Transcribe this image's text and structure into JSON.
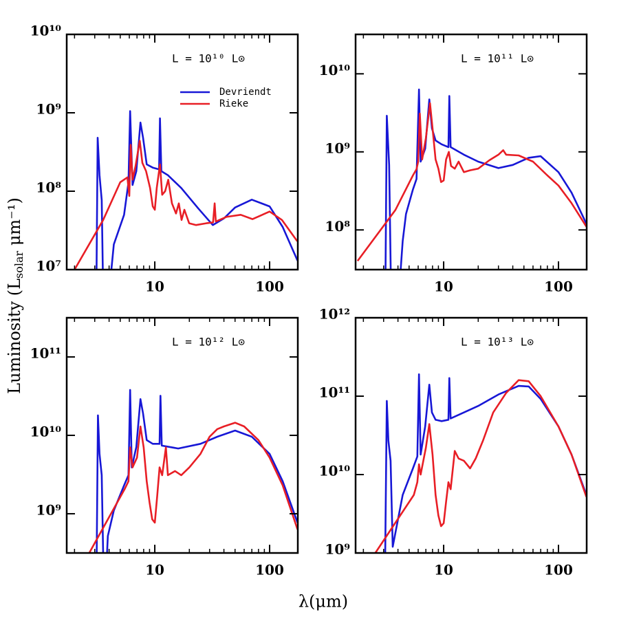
{
  "xlabel": "λ(μm)",
  "ylabel": {
    "text": "Luminosity (L",
    "sub": "solar",
    "end": " μm⁻¹)"
  },
  "chart_data": [
    {
      "type": "line",
      "annotation": "L = 10¹⁰ L⊙",
      "xscale": "log",
      "yscale": "log",
      "legend": true,
      "xlim": [
        1.71,
        176
      ],
      "xticks": [
        10,
        100
      ],
      "xminorticks": [
        2,
        3,
        4,
        5,
        6,
        7,
        8,
        9,
        20,
        30,
        40,
        50,
        60,
        70,
        80,
        90
      ],
      "ylim": [
        10000000.0,
        10000000000.0
      ],
      "yticks": [
        {
          "value": 10000000.0,
          "label": "10⁷"
        },
        {
          "value": 100000000.0,
          "label": "10⁸"
        },
        {
          "value": 1000000000.0,
          "label": "10⁹"
        },
        {
          "value": 10000000000.0,
          "label": "10¹⁰"
        }
      ],
      "series": [
        {
          "name": "Devriendt",
          "color": "#1717d6",
          "x": [
            3.1,
            3.18,
            3.3,
            3.45,
            3.55,
            4.0,
            4.4,
            5.4,
            5.9,
            6.1,
            6.4,
            6.9,
            7.5,
            7.9,
            8.5,
            9.6,
            10.9,
            11.1,
            11.4,
            13,
            17,
            24,
            32,
            40,
            50,
            70,
            100,
            130,
            175
          ],
          "values": [
            5000000.0,
            480000000.0,
            160000000.0,
            77000000.0,
            5000000.0,
            5000000.0,
            21000000.0,
            50000000.0,
            130000000.0,
            1050000000.0,
            120000000.0,
            180000000.0,
            750000000.0,
            480000000.0,
            220000000.0,
            200000000.0,
            190000000.0,
            850000000.0,
            180000000.0,
            160000000.0,
            110000000.0,
            60000000.0,
            37000000.0,
            45000000.0,
            62000000.0,
            78000000.0,
            64000000.0,
            35000000.0,
            13000000.0
          ]
        },
        {
          "name": "Rieke",
          "color": "#e81e25",
          "x": [
            2,
            3.55,
            5.0,
            5.77,
            6.0,
            6.17,
            6.4,
            6.8,
            7.4,
            7.8,
            8.4,
            9.1,
            9.6,
            10,
            10.4,
            11.1,
            11.6,
            12.3,
            13.1,
            14.1,
            15.3,
            16.2,
            17.1,
            18.1,
            19.9,
            22.9,
            28.1,
            32.2,
            33.2,
            34,
            42,
            56,
            71,
            100,
            128,
            174
          ],
          "values": [
            10000000.0,
            43000000.0,
            130000000.0,
            150000000.0,
            87000000.0,
            390000000.0,
            140000000.0,
            210000000.0,
            440000000.0,
            230000000.0,
            180000000.0,
            110000000.0,
            64000000.0,
            58000000.0,
            110000000.0,
            220000000.0,
            90000000.0,
            100000000.0,
            140000000.0,
            70000000.0,
            52000000.0,
            70000000.0,
            43000000.0,
            58000000.0,
            39000000.0,
            37000000.0,
            39000000.0,
            40000000.0,
            70000000.0,
            41000000.0,
            47000000.0,
            50000000.0,
            44000000.0,
            55000000.0,
            43000000.0,
            23000000.0
          ]
        }
      ]
    },
    {
      "type": "line",
      "annotation": "L = 10¹¹ L⊙",
      "xscale": "log",
      "yscale": "log",
      "legend": false,
      "xlim": [
        1.71,
        176
      ],
      "xticks": [
        10,
        100
      ],
      "xminorticks": [
        2,
        3,
        4,
        5,
        6,
        7,
        8,
        9,
        20,
        30,
        40,
        50,
        60,
        70,
        80,
        90
      ],
      "ylim": [
        31000000.0,
        32000000000.0
      ],
      "yticks": [
        {
          "value": 100000000.0,
          "label": "10⁸"
        },
        {
          "value": 1000000000.0,
          "label": "10⁹"
        },
        {
          "value": 10000000000.0,
          "label": "10¹⁰"
        }
      ],
      "series": [
        {
          "name": "Devriendt",
          "color": "#1717d6",
          "x": [
            3.1,
            3.2,
            3.35,
            3.5,
            4.0,
            4.4,
            4.7,
            5.4,
            5.8,
            6.1,
            6.3,
            6.9,
            7.5,
            7.9,
            8.5,
            9.6,
            11,
            11.2,
            11.5,
            15,
            20,
            30,
            40,
            55,
            70,
            100,
            130,
            175
          ],
          "values": [
            10000000.0,
            2900000000.0,
            680000000.0,
            10000000.0,
            10000000.0,
            72000000.0,
            160000000.0,
            330000000.0,
            450000000.0,
            6300000000.0,
            750000000.0,
            1100000000.0,
            4700000000.0,
            2000000000.0,
            1400000000.0,
            1250000000.0,
            1150000000.0,
            5200000000.0,
            1150000000.0,
            920000000.0,
            750000000.0,
            620000000.0,
            680000000.0,
            840000000.0,
            880000000.0,
            550000000.0,
            300000000.0,
            120000000.0
          ]
        },
        {
          "name": "Rieke",
          "color": "#e81e25",
          "x": [
            1.78,
            3.8,
            5.4,
            5.8,
            6.0,
            6.2,
            6.5,
            7.0,
            7.6,
            8.0,
            8.5,
            9.0,
            9.5,
            10,
            10.5,
            11.1,
            11.6,
            12.5,
            13.5,
            15,
            17,
            20,
            25,
            30,
            33,
            35,
            45,
            60,
            80,
            100,
            130,
            175
          ],
          "values": [
            40000000.0,
            180000000.0,
            500000000.0,
            600000000.0,
            750000000.0,
            3100000000.0,
            800000000.0,
            1500000000.0,
            4200000000.0,
            2000000000.0,
            800000000.0,
            610000000.0,
            410000000.0,
            430000000.0,
            800000000.0,
            1000000000.0,
            660000000.0,
            610000000.0,
            750000000.0,
            550000000.0,
            580000000.0,
            610000000.0,
            780000000.0,
            920000000.0,
            1050000000.0,
            920000000.0,
            900000000.0,
            750000000.0,
            500000000.0,
            370000000.0,
            220000000.0,
            110000000.0
          ]
        }
      ]
    },
    {
      "type": "line",
      "annotation": "L = 10¹² L⊙",
      "xscale": "log",
      "yscale": "log",
      "legend": false,
      "xlim": [
        1.71,
        176
      ],
      "xticks": [
        10,
        100
      ],
      "xminorticks": [
        2,
        3,
        4,
        5,
        6,
        7,
        8,
        9,
        20,
        30,
        40,
        50,
        60,
        70,
        80,
        90
      ],
      "ylim": [
        316000000.0,
        316000000000.0
      ],
      "yticks": [
        {
          "value": 1000000000.0,
          "label": "10⁹"
        },
        {
          "value": 10000000000.0,
          "label": "10¹⁰"
        },
        {
          "value": 100000000000.0,
          "label": "10¹¹"
        }
      ],
      "series": [
        {
          "name": "Devriendt",
          "color": "#1717d6",
          "x": [
            3.1,
            3.2,
            3.3,
            3.45,
            3.6,
            3.7,
            3.9,
            4.4,
            5.4,
            5.9,
            6.1,
            6.3,
            6.9,
            7.5,
            7.9,
            8.5,
            9.6,
            11,
            11.2,
            11.5,
            16,
            25,
            35,
            50,
            70,
            100,
            130,
            175
          ],
          "values": [
            100000000.0,
            18000000000.0,
            5800000000.0,
            3100000000.0,
            100000000.0,
            100000000.0,
            520000000.0,
            1100000000.0,
            2300000000.0,
            3100000000.0,
            38000000000.0,
            3900000000.0,
            7100000000.0,
            29000000000.0,
            19000000000.0,
            8700000000.0,
            7800000000.0,
            7800000000.0,
            32000000000.0,
            7400000000.0,
            6800000000.0,
            7800000000.0,
            9600000000.0,
            11500000000.0,
            9600000000.0,
            5800000000.0,
            2600000000.0,
            770000000.0
          ]
        },
        {
          "name": "Rieke",
          "color": "#e81e25",
          "x": [
            2.7,
            5.5,
            5.9,
            6.1,
            6.4,
            7.0,
            7.5,
            8.0,
            8.5,
            9.0,
            9.5,
            10,
            10.5,
            11,
            11.6,
            12.5,
            13,
            15,
            17,
            20,
            25,
            30,
            35,
            40,
            50,
            60,
            80,
            100,
            130,
            175
          ],
          "values": [
            320000000.0,
            2100000000.0,
            2600000000.0,
            7000000000.0,
            3900000000.0,
            5200000000.0,
            13000000000.0,
            7000000000.0,
            2600000000.0,
            1400000000.0,
            850000000.0,
            770000000.0,
            1700000000.0,
            3900000000.0,
            3100000000.0,
            7000000000.0,
            3100000000.0,
            3500000000.0,
            3100000000.0,
            3900000000.0,
            5800000000.0,
            9600000000.0,
            12000000000.0,
            13000000000.0,
            14500000000.0,
            13000000000.0,
            8700000000.0,
            5200000000.0,
            2300000000.0,
            630000000.0
          ]
        }
      ]
    },
    {
      "type": "line",
      "annotation": "L = 10¹³ L⊙",
      "xscale": "log",
      "yscale": "log",
      "legend": false,
      "xlim": [
        1.71,
        176
      ],
      "xticks": [
        10,
        100
      ],
      "xminorticks": [
        2,
        3,
        4,
        5,
        6,
        7,
        8,
        9,
        20,
        30,
        40,
        50,
        60,
        70,
        80,
        90
      ],
      "ylim": [
        1000000000.0,
        1000000000000.0
      ],
      "yticks": [
        {
          "value": 1000000000.0,
          "label": "10⁹"
        },
        {
          "value": 10000000000.0,
          "label": "10¹⁰"
        },
        {
          "value": 100000000000.0,
          "label": "10¹¹"
        },
        {
          "value": 1000000000000.0,
          "label": "10¹²"
        }
      ],
      "series": [
        {
          "name": "Devriendt",
          "color": "#1717d6",
          "x": [
            3.1,
            3.2,
            3.3,
            3.45,
            3.6,
            4.4,
            5.4,
            5.9,
            6.1,
            6.3,
            6.9,
            7.5,
            7.9,
            8.5,
            9.6,
            11,
            11.2,
            11.5,
            15,
            20,
            30,
            45,
            55,
            70,
            100,
            130,
            175
          ],
          "values": [
            1000000000.0,
            87000000000.0,
            27000000000.0,
            15000000000.0,
            1200000000.0,
            5500000000.0,
            12000000000.0,
            17000000000.0,
            190000000000.0,
            18000000000.0,
            41000000000.0,
            140000000000.0,
            62000000000.0,
            50000000000.0,
            48000000000.0,
            50000000000.0,
            170000000000.0,
            52000000000.0,
            62000000000.0,
            75000000000.0,
            105000000000.0,
            135000000000.0,
            133000000000.0,
            92000000000.0,
            41000000000.0,
            18000000000.0,
            5500000000.0
          ]
        },
        {
          "name": "Rieke",
          "color": "#e81e25",
          "x": [
            2.54,
            5.5,
            5.9,
            6.1,
            6.3,
            7.0,
            7.5,
            8.0,
            8.5,
            9,
            9.5,
            10,
            10.5,
            11,
            11.5,
            12.5,
            13.5,
            15,
            17,
            19,
            22,
            27,
            35,
            45,
            55,
            70,
            100,
            130,
            175
          ],
          "values": [
            1000000000.0,
            5500000000.0,
            8000000000.0,
            13500000000.0,
            10000000000.0,
            22000000000.0,
            44000000000.0,
            18000000000.0,
            5500000000.0,
            3000000000.0,
            2200000000.0,
            2400000000.0,
            4500000000.0,
            8000000000.0,
            6500000000.0,
            20000000000.0,
            16000000000.0,
            15000000000.0,
            12000000000.0,
            16000000000.0,
            27000000000.0,
            62000000000.0,
            110000000000.0,
            160000000000.0,
            155000000000.0,
            100000000000.0,
            41000000000.0,
            18000000000.0,
            5200000000.0
          ]
        }
      ]
    }
  ]
}
